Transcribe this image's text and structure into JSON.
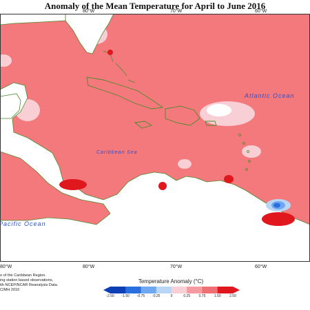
{
  "title": "Anomaly of the Mean Temperature for April to June 2016",
  "longitude_labels": {
    "top": [
      "80°W",
      "70°W",
      "60°W"
    ],
    "bottom": [
      "80°W",
      "80°W",
      "70°W",
      "60°W"
    ]
  },
  "places": {
    "atlantic_ocean": "Atlantic Ocean",
    "caribbean_sea": "Caribbean Sea",
    "pacific_ocean": "Pacific Ocean"
  },
  "credits": [
    "o of the Caribbean Region.",
    "ing station based observations,",
    "ith NCEP/NCAR Reanalysis Data.",
    "CIMH 2016"
  ],
  "legend": {
    "title": "Temperature Anomaly (°C)",
    "ticks": [
      "-2.50",
      "-1.50",
      "-0.75",
      "-0.25",
      "0",
      "0.25",
      "0.75",
      "1.50",
      "2.50"
    ],
    "colors": [
      "#0c3fb5",
      "#2a6fe0",
      "#6fa7f0",
      "#b9d6f7",
      "#ffffff",
      "#f8cfd4",
      "#f49aa0",
      "#ee6f74",
      "#e0181e"
    ]
  },
  "colors": {
    "ocean_anomaly": "#f4797c",
    "land": "#ffffff",
    "coastline": "#4a8a2a",
    "ocean_label": "#2a4fd0"
  }
}
